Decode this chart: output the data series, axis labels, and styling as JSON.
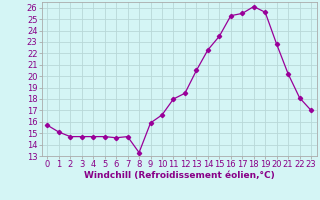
{
  "x": [
    0,
    1,
    2,
    3,
    4,
    5,
    6,
    7,
    8,
    9,
    10,
    11,
    12,
    13,
    14,
    15,
    16,
    17,
    18,
    19,
    20,
    21,
    22,
    23
  ],
  "y": [
    15.7,
    15.1,
    14.7,
    14.7,
    14.7,
    14.7,
    14.6,
    14.7,
    13.3,
    15.9,
    16.6,
    18.0,
    18.5,
    20.5,
    22.3,
    23.5,
    25.3,
    25.5,
    26.1,
    25.6,
    22.8,
    20.2,
    18.1,
    17.0
  ],
  "line_color": "#990099",
  "marker": "D",
  "marker_size": 2.2,
  "bg_color": "#d4f5f5",
  "grid_color": "#b8d8d8",
  "xlabel": "Windchill (Refroidissement éolien,°C)",
  "xlabel_fontsize": 6.5,
  "tick_fontsize": 6.0,
  "ylim": [
    13,
    26.5
  ],
  "yticks": [
    13,
    14,
    15,
    16,
    17,
    18,
    19,
    20,
    21,
    22,
    23,
    24,
    25,
    26
  ],
  "xlim": [
    -0.5,
    23.5
  ],
  "xticks": [
    0,
    1,
    2,
    3,
    4,
    5,
    6,
    7,
    8,
    9,
    10,
    11,
    12,
    13,
    14,
    15,
    16,
    17,
    18,
    19,
    20,
    21,
    22,
    23
  ],
  "spine_color": "#aaaaaa",
  "text_color": "#880088"
}
